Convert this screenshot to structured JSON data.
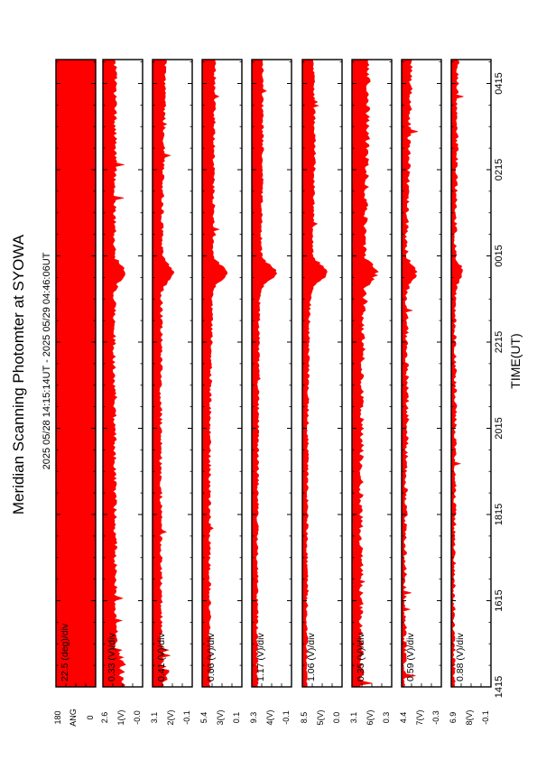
{
  "title": "Meridian Scanning Photomter at SYOWA",
  "time_range": "2025 05/28 14:15:14UT - 2025 05/29 04:46:06UT",
  "xlabel": "TIME(UT)",
  "colors": {
    "trace": "#ff0000",
    "axes": "#000000",
    "background": "#ffffff"
  },
  "chart_data": {
    "type": "area",
    "x_ticks": [
      "1415",
      "1615",
      "1815",
      "2015",
      "2215",
      "0015",
      "0215",
      "0415"
    ],
    "panels": [
      {
        "kind": "angle",
        "scale": "22.5 (deg)/div",
        "y_top": "180",
        "y_label": "ANG",
        "y_bottom": "0",
        "fill": 1.0
      },
      {
        "kind": "signal",
        "scale": "0.33 (V)/div",
        "y_top": "2.6",
        "y_label": "1(V)",
        "y_bottom": "-0.0",
        "base": [
          0.32,
          0.3,
          0.28,
          0.27,
          0.26,
          0.27,
          0.28,
          0.29
        ],
        "peak_at": 0.66,
        "peak_amp": 0.25,
        "noise": 0.1
      },
      {
        "kind": "signal",
        "scale": "0.41 (V)/div",
        "y_top": "3.1",
        "y_label": "2(V)",
        "y_bottom": "-0.1",
        "base": [
          0.22,
          0.2,
          0.19,
          0.19,
          0.2,
          0.22,
          0.26,
          0.3
        ],
        "peak_at": 0.66,
        "peak_amp": 0.3,
        "noise": 0.08
      },
      {
        "kind": "signal",
        "scale": "0.66 (V)/div",
        "y_top": "5.4",
        "y_label": "3(V)",
        "y_bottom": "0.1",
        "base": [
          0.18,
          0.17,
          0.17,
          0.18,
          0.22,
          0.26,
          0.28,
          0.3
        ],
        "peak_at": 0.66,
        "peak_amp": 0.35,
        "noise": 0.07
      },
      {
        "kind": "signal",
        "scale": "1.17 (V)/div",
        "y_top": "9.3",
        "y_label": "4(V)",
        "y_bottom": "-0.1",
        "base": [
          0.12,
          0.12,
          0.13,
          0.14,
          0.16,
          0.22,
          0.26,
          0.24
        ],
        "peak_at": 0.66,
        "peak_amp": 0.4,
        "noise": 0.06
      },
      {
        "kind": "signal",
        "scale": "1.06 (V)/div",
        "y_top": "8.5",
        "y_label": "5(V)",
        "y_bottom": "0.0",
        "base": [
          0.1,
          0.1,
          0.11,
          0.12,
          0.15,
          0.25,
          0.3,
          0.26
        ],
        "peak_at": 0.66,
        "peak_amp": 0.4,
        "noise": 0.06
      },
      {
        "kind": "signal",
        "scale": "0.35 (V)/div",
        "y_top": "3.1",
        "y_label": "6(V)",
        "y_bottom": "0.3",
        "base": [
          0.22,
          0.2,
          0.2,
          0.22,
          0.26,
          0.3,
          0.36,
          0.38
        ],
        "peak_at": 0.66,
        "peak_amp": 0.3,
        "noise": 0.12
      },
      {
        "kind": "signal",
        "scale": "0.59 (V)/div",
        "y_top": "4.4",
        "y_label": "7(V)",
        "y_bottom": "-0.3",
        "base": [
          0.06,
          0.06,
          0.08,
          0.12,
          0.1,
          0.1,
          0.16,
          0.22
        ],
        "peak_at": 0.66,
        "peak_amp": 0.25,
        "noise": 0.1
      },
      {
        "kind": "signal",
        "scale": "0.88 (V)/div",
        "y_top": "6.9",
        "y_label": "8(V)",
        "y_bottom": "-0.1",
        "base": [
          0.05,
          0.05,
          0.07,
          0.09,
          0.07,
          0.08,
          0.12,
          0.14
        ],
        "peak_at": 0.66,
        "peak_amp": 0.2,
        "noise": 0.08
      }
    ]
  }
}
